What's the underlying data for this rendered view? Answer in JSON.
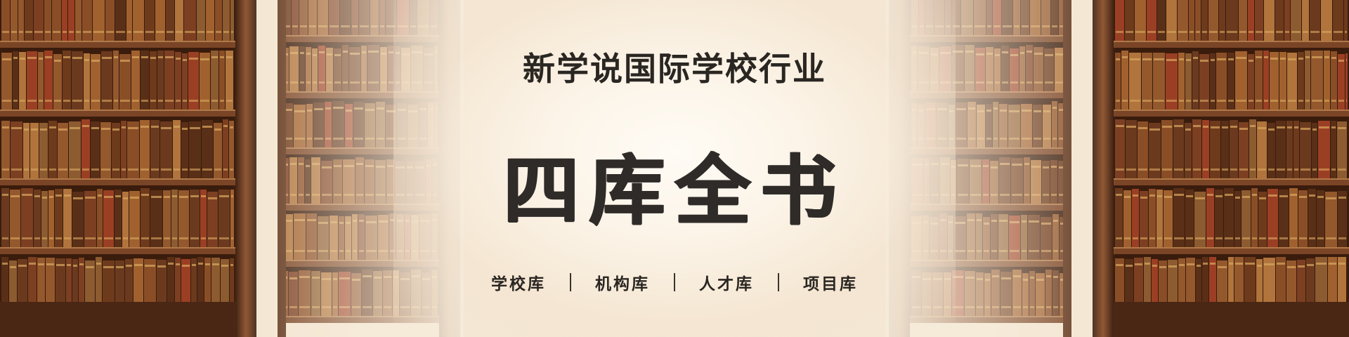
{
  "banner": {
    "subtitle": "新学说国际学校行业",
    "title": "四库全书",
    "nav": [
      {
        "label": "学校库"
      },
      {
        "label": "机构库"
      },
      {
        "label": "人才库"
      },
      {
        "label": "项目库"
      }
    ],
    "background": "bookshelves-library-image"
  },
  "colors": {
    "text": "#2f2b28",
    "wood_dark": "#4a2614",
    "wood_mid": "#7a4526",
    "cream": "#f8efe2"
  }
}
